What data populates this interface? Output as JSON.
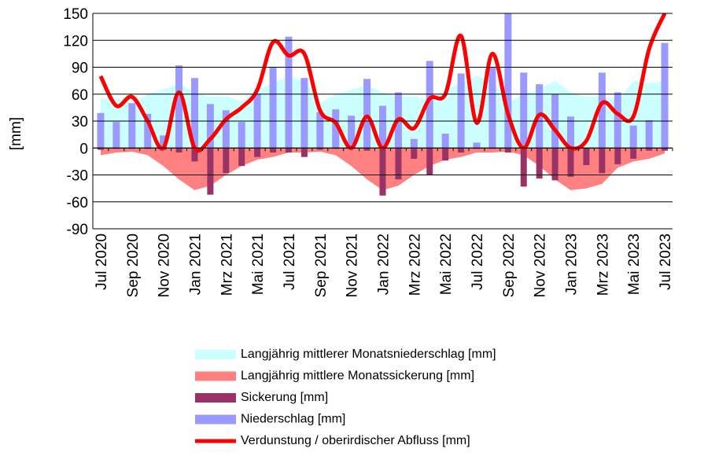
{
  "chart_data": {
    "type": "combo",
    "y_label": "[mm]",
    "categories": [
      "Jul 2020",
      null,
      "Sep 2020",
      null,
      "Nov 2020",
      null,
      "Jan 2021",
      null,
      "Mrz 2021",
      null,
      "Mai 2021",
      null,
      "Jul 2021",
      null,
      "Sep 2021",
      null,
      "Nov 2021",
      null,
      "Jan 2022",
      null,
      "Mrz 2022",
      null,
      "Mai 2022",
      null,
      "Jul 2022",
      null,
      "Sep 2022",
      null,
      "Nov 2022",
      null,
      "Jan 2023",
      null,
      "Mrz 2023",
      null,
      "Mai 2023",
      null,
      "Jul 2023"
    ],
    "ylim": [
      -90,
      150
    ],
    "yticks": [
      -90,
      -60,
      -30,
      0,
      30,
      60,
      90,
      120,
      150
    ],
    "grid": true,
    "series": [
      {
        "name": "Langjährig mittlerer Monatsniederschlag [mm]",
        "kind": "area",
        "color": "#ccffff",
        "values": [
          55,
          55,
          50,
          60,
          65,
          72,
          62,
          57,
          58,
          52,
          65,
          72,
          80,
          75,
          50,
          60,
          65,
          70,
          62,
          57,
          58,
          52,
          65,
          72,
          80,
          75,
          50,
          60,
          65,
          75,
          62,
          57,
          58,
          52,
          75,
          72,
          75
        ]
      },
      {
        "name": "Langjährig mittlere Monatssickerung [mm]",
        "kind": "area",
        "color": "#ff8080",
        "values": [
          -8,
          -5,
          -4,
          -8,
          -20,
          -35,
          -47,
          -42,
          -30,
          -20,
          -13,
          -10,
          -5,
          -5,
          -4,
          -8,
          -20,
          -35,
          -47,
          -42,
          -30,
          -20,
          -13,
          -10,
          -5,
          -5,
          -4,
          -8,
          -20,
          -35,
          -47,
          -45,
          -40,
          -22,
          -15,
          -12,
          -6
        ]
      },
      {
        "name": "Sickerung [mm]",
        "kind": "bar",
        "color": "#993366",
        "values": [
          -2,
          -1,
          -1,
          -1,
          -2,
          -5,
          -15,
          -52,
          -28,
          -20,
          -10,
          -5,
          -5,
          -10,
          -2,
          -1,
          -1,
          -3,
          -53,
          -35,
          -12,
          -30,
          -14,
          -5,
          -1,
          -1,
          -5,
          -43,
          -34,
          -36,
          -32,
          -19,
          -28,
          -18,
          -12,
          -3,
          -3
        ]
      },
      {
        "name": "Niederschlag [mm]",
        "kind": "bar",
        "color": "#9999ff",
        "values": [
          39,
          29,
          50,
          38,
          14,
          92,
          78,
          49,
          42,
          29,
          60,
          90,
          124,
          78,
          40,
          43,
          36,
          77,
          47,
          62,
          10,
          97,
          16,
          83,
          6,
          90,
          150,
          84,
          71,
          60,
          35,
          0,
          84,
          62,
          25,
          31,
          117
        ]
      },
      {
        "name": "Verdunstung / oberirdischer Abfluss [mm]",
        "kind": "line",
        "color": "#ff0000",
        "values": [
          80,
          47,
          57,
          30,
          0,
          62,
          0,
          10,
          32,
          45,
          65,
          118,
          103,
          105,
          42,
          28,
          0,
          35,
          0,
          32,
          22,
          55,
          60,
          125,
          28,
          105,
          38,
          0,
          37,
          20,
          0,
          8,
          50,
          38,
          35,
          110,
          150
        ]
      }
    ]
  }
}
